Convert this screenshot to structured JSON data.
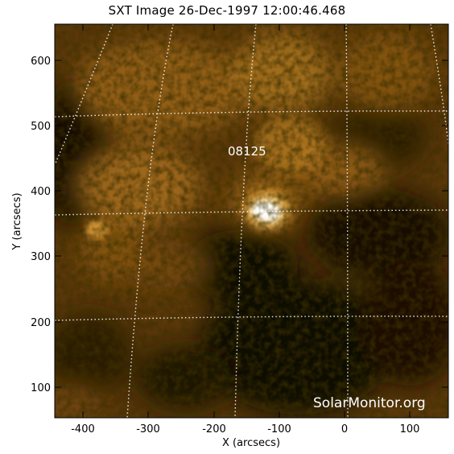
{
  "image": {
    "title": "SXT Image 26-Dec-1997 12:00:46.468",
    "active_region_label": "08125",
    "watermark": "SolarMonitor.org",
    "x_axis": {
      "label": "X (arcsecs)",
      "tick_labels": [
        "-400",
        "-300",
        "-200",
        "-100",
        "0",
        "100"
      ],
      "range": [
        -445,
        158
      ]
    },
    "y_axis": {
      "label": "Y (arcsecs)",
      "tick_labels": [
        "100",
        "200",
        "300",
        "400",
        "500",
        "600"
      ],
      "range": [
        55,
        656
      ]
    },
    "colors": {
      "background": "#ffffff",
      "plot_dark": "#100800",
      "plot_mid": "#8a5a12",
      "plot_bright": "#e0a040",
      "flare_core": "#fff6d8",
      "grid": "#ffffff",
      "axes": "#000000"
    }
  }
}
